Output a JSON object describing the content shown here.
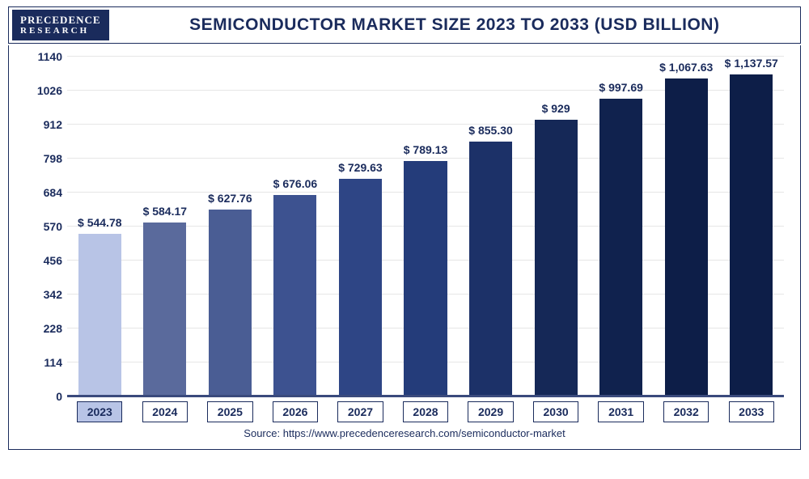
{
  "logo": {
    "line1": "PRECEDENCE",
    "line2": "RESEARCH"
  },
  "title": "SEMICONDUCTOR MARKET SIZE 2023 TO 2033 (USD BILLION)",
  "source": "Source: https://www.precedenceresearch.com/semiconductor-market",
  "chart": {
    "type": "bar",
    "ylim_min": 0,
    "ylim_max": 1140,
    "yticks": [
      0,
      114,
      228,
      342,
      456,
      570,
      684,
      798,
      912,
      1026,
      1140
    ],
    "grid_color": "#e6e6e6",
    "baseline_color": "#3a4a7c",
    "bar_width_pct": 66,
    "categories": [
      "2023",
      "2024",
      "2025",
      "2026",
      "2027",
      "2028",
      "2029",
      "2030",
      "2031",
      "2032",
      "2033"
    ],
    "values": [
      544.78,
      584.17,
      627.76,
      676.06,
      729.63,
      789.13,
      855.3,
      929,
      997.69,
      1067.63,
      1137.57
    ],
    "value_labels": [
      "$ 544.78",
      "$ 584.17",
      "$ 627.76",
      "$ 676.06",
      "$ 729.63",
      "$ 789.13",
      "$ 855.30",
      "$ 929",
      "$ 997.69",
      "$ 1,067.63",
      "$ 1,137.57"
    ],
    "bar_colors": [
      "#b8c4e6",
      "#5a6a9c",
      "#4a5d94",
      "#3d5290",
      "#2e4585",
      "#243c7a",
      "#1c3168",
      "#152857",
      "#10224e",
      "#0d1e48",
      "#0d1e48"
    ],
    "highlight_index": 0,
    "text_color": "#1a2b5c",
    "title_fontsize": 21,
    "label_fontsize": 14,
    "tick_fontsize": 14
  }
}
